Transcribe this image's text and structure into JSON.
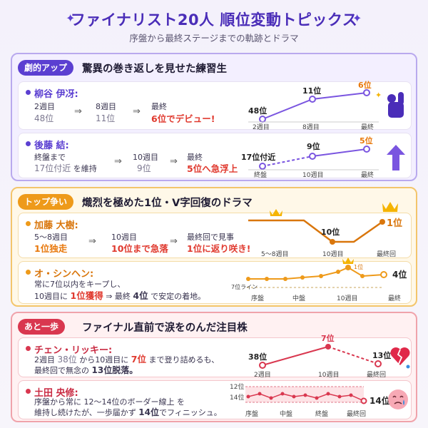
{
  "header": {
    "title": "ファイナリスト20人 順位変動トピックス",
    "subtitle": "序盤から最終ステージまでの軌跡とドラマ"
  },
  "sections": [
    {
      "tag": "劇的アップ",
      "heading": "驚異の巻き返しを見せた練習生",
      "color": "#5b3fd1",
      "cards": [
        {
          "name": "柳谷 伊冴:",
          "steps": [
            {
              "label": "2週目",
              "value": "48位"
            },
            {
              "label": "8週目",
              "value": "11位"
            },
            {
              "label": "最終",
              "value_hl": "6位",
              "value_suffix": "でデビュー!"
            }
          ],
          "chart": {
            "points": [
              {
                "x": "2週目",
                "rank": "48位"
              },
              {
                "x": "8週目",
                "rank": "11位"
              },
              {
                "x": "最終",
                "rank": "6位"
              }
            ]
          }
        },
        {
          "name": "後藤 結:",
          "steps": [
            {
              "label": "終盤まで",
              "value": "17位付近",
              "value_suffix": "を維持"
            },
            {
              "label": "10週目",
              "value": "9位"
            },
            {
              "label": "最終",
              "value_hl": "5位",
              "value_suffix": "へ急浮上"
            }
          ],
          "chart": {
            "points": [
              {
                "x": "終盤",
                "rank": "17位付近"
              },
              {
                "x": "10週目",
                "rank": "9位"
              },
              {
                "x": "最終",
                "rank": "5位"
              }
            ]
          }
        }
      ]
    },
    {
      "tag": "トップ争い",
      "heading": "熾烈を極めた1位・V字回復のドラマ",
      "color": "#ee9a1a",
      "cards": [
        {
          "name": "加藤 大樹:",
          "steps": [
            {
              "label": "5〜8週目",
              "value_hl": "1位独走"
            },
            {
              "label": "10週目",
              "value_hl": "10位まで急落"
            },
            {
              "label": "最終回で見事",
              "value_hl": "1位に返り咲き!"
            }
          ],
          "chart": {
            "points": [
              {
                "x": "5〜8週目",
                "rank": ""
              },
              {
                "x": "10週目",
                "rank": "10位"
              },
              {
                "x": "最終回",
                "rank": "1位"
              }
            ]
          }
        },
        {
          "name": "オ・シンヘン:",
          "line1": "常に7位以内をキープし、",
          "line2_pre": "10週目に",
          "line2_hl": "1位獲得",
          "line2_mid": "最終",
          "line2_hl2": "4位",
          "line2_post": "で安定の着地。",
          "chart": {
            "guide": "7位ライン",
            "x_labels": [
              "序盤",
              "中盤",
              "10週目",
              "最終"
            ],
            "peak": "1位",
            "final": "4位"
          }
        }
      ]
    },
    {
      "tag": "あと一歩",
      "heading": "ファイナル直前で涙をのんだ注目株",
      "color": "#d9374f",
      "cards": [
        {
          "name": "チェン・リッキー:",
          "line1_a": "2週目",
          "line1_b": "38位",
          "line1_c": "から10週目に",
          "line1_d": "7位",
          "line1_e": "まで登り詰めるも、",
          "line2_a": "最終回で無念の",
          "line2_b": "13位脱落。",
          "chart": {
            "points": [
              {
                "x": "2週目",
                "rank": "38位"
              },
              {
                "x": "10週目",
                "rank": "7位"
              },
              {
                "x": "最終回",
                "rank": "13位"
              }
            ]
          }
        },
        {
          "name": "土田 央修:",
          "line1": "序盤から常に 12〜14位のボーダー線上 を",
          "line2_a": "維持し続けたが、一歩届かず",
          "line2_b": "14位",
          "line2_c": "でフィニッシュ。",
          "chart": {
            "y_labels": [
              "12位",
              "14位"
            ],
            "x_labels": [
              "序盤",
              "中盤",
              "終盤",
              "最終回"
            ],
            "final": "14位"
          }
        }
      ]
    }
  ],
  "icons": [
    "sparkle-icon",
    "fist-pump-icon",
    "up-arrow-icon",
    "crown-icon",
    "broken-heart-icon",
    "crying-face-icon"
  ]
}
